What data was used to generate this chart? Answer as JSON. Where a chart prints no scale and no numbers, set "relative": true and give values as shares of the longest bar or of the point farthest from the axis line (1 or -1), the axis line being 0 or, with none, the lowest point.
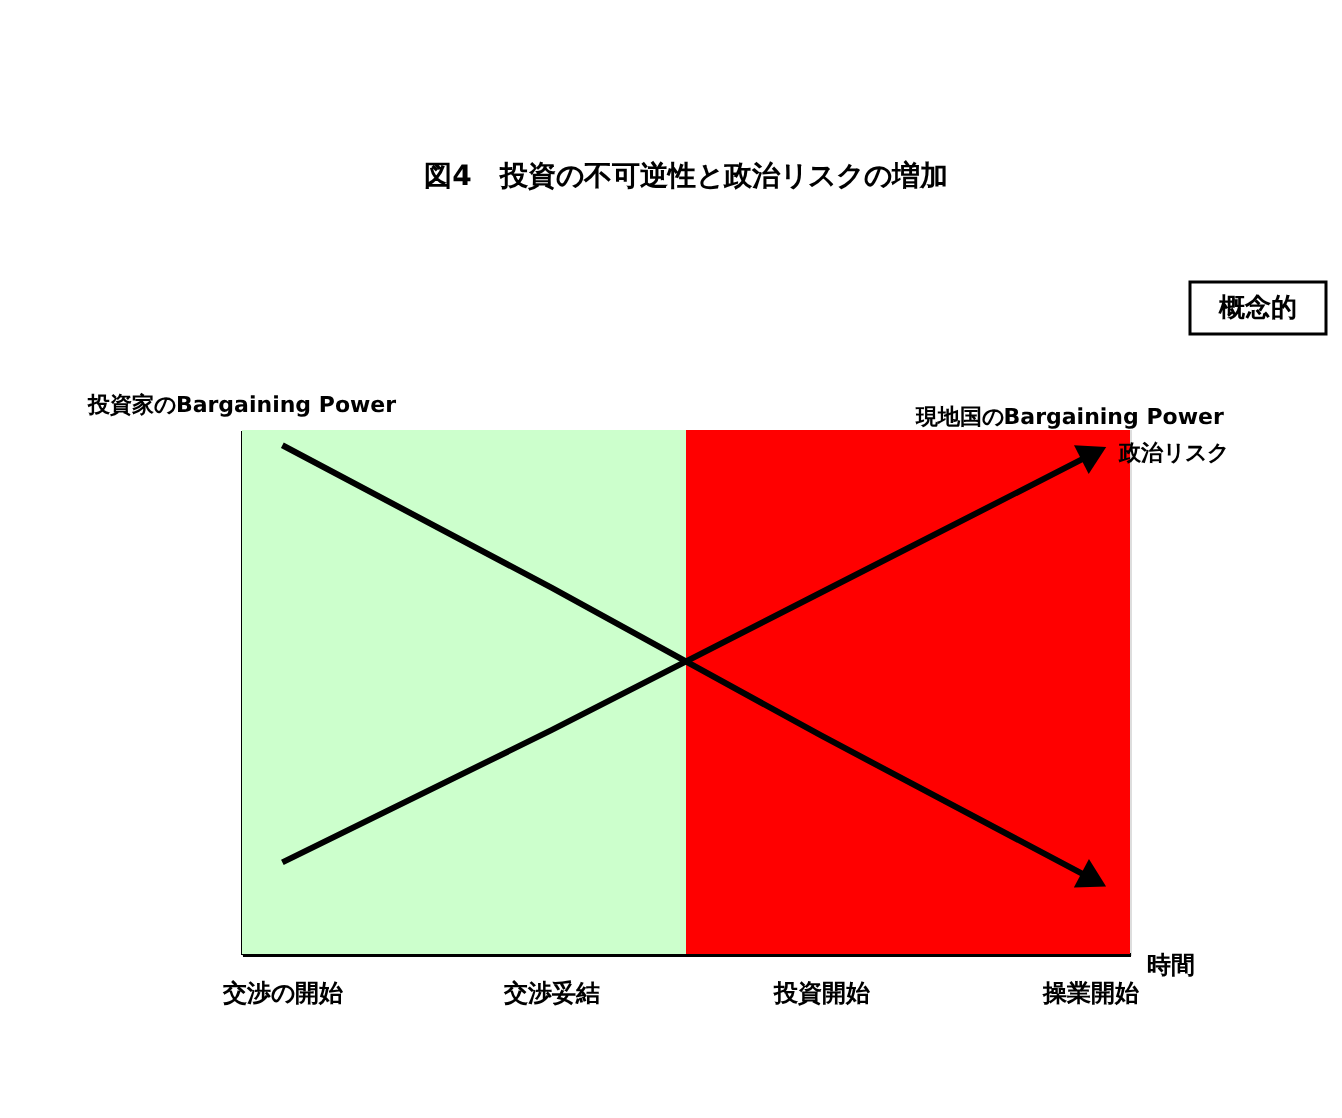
{
  "chart_data": {
    "type": "line",
    "title": "図4　投資の不可逆性と政治リスクの増加",
    "xlabel": "時間",
    "relative": true,
    "legend": false,
    "marker": "none",
    "line_style": "solid",
    "categories": [
      "交渉の開始",
      "交渉妥結",
      "投資開始",
      "操業開始"
    ],
    "series": [
      {
        "name": "投資家のBargaining Power",
        "color": "#000000",
        "values": [
          1,
          0.72,
          0.43,
          0.15
        ]
      },
      {
        "name": "現地国のBargaining Power",
        "color": "#000000",
        "values": [
          0.18,
          0.44,
          0.71,
          0.98
        ]
      }
    ],
    "bands": [
      {
        "axis": "x",
        "from": "交渉の開始",
        "to": "交渉妥結",
        "color": "#ccffcc"
      },
      {
        "axis": "x",
        "from": "投資開始",
        "to": "操業開始",
        "color": "#ff0000"
      }
    ],
    "annotations": [
      "政治リスク",
      "概念的"
    ]
  }
}
